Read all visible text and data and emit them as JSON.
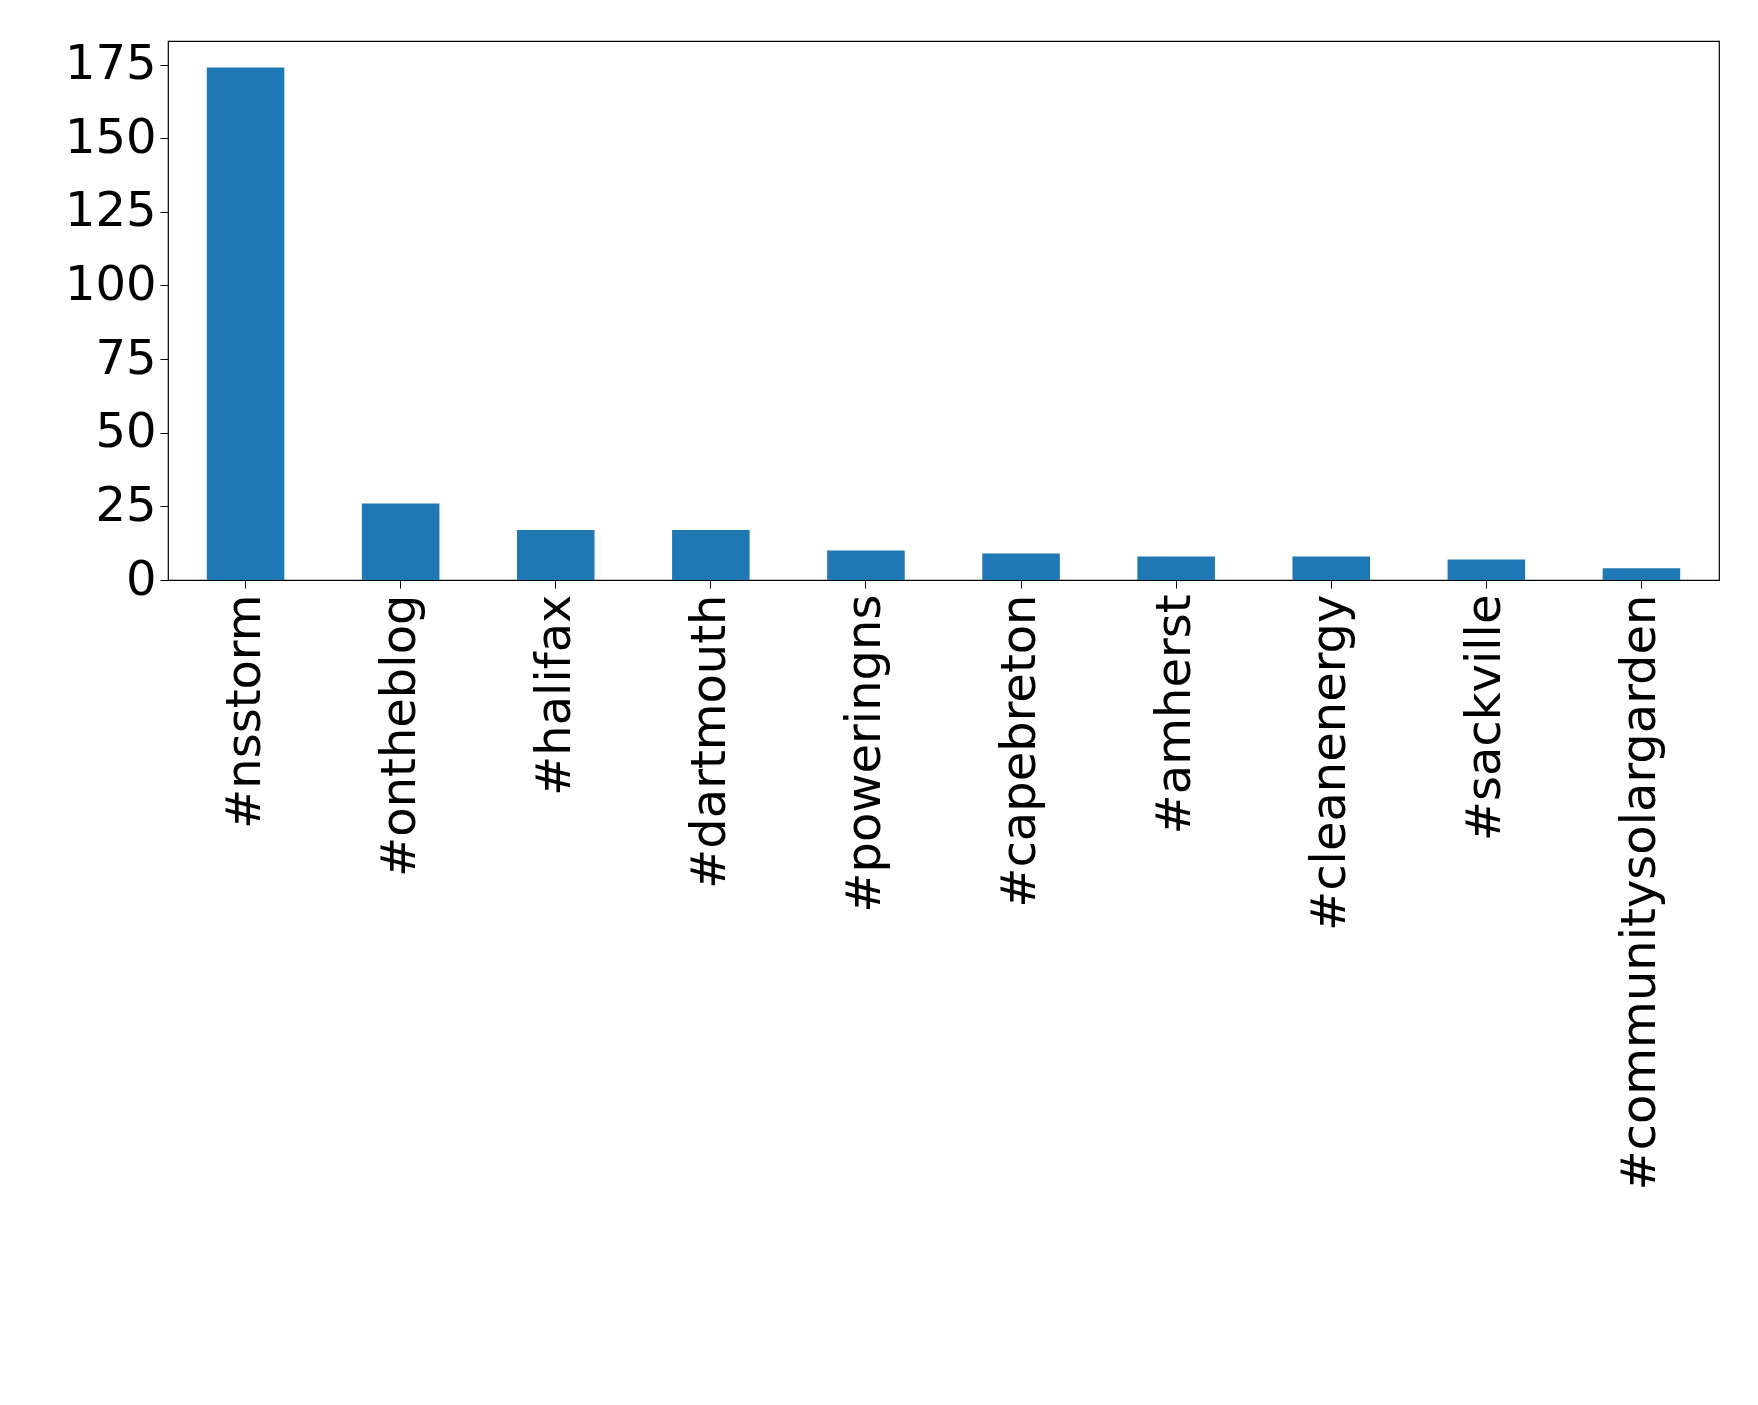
{
  "chart_data": {
    "type": "bar",
    "categories": [
      "#nsstorm",
      "#ontheblog",
      "#halifax",
      "#dartmouth",
      "#poweringns",
      "#capebreton",
      "#amherst",
      "#cleanenergy",
      "#sackville",
      "#communitysolargarden"
    ],
    "values": [
      174,
      26,
      17,
      17,
      10,
      9,
      8,
      8,
      7,
      4
    ],
    "color": "#1f77b4",
    "ylim": [
      0,
      183
    ],
    "yticks": [
      0,
      25,
      50,
      75,
      100,
      125,
      150,
      175
    ],
    "grid": false,
    "legend": false
  }
}
